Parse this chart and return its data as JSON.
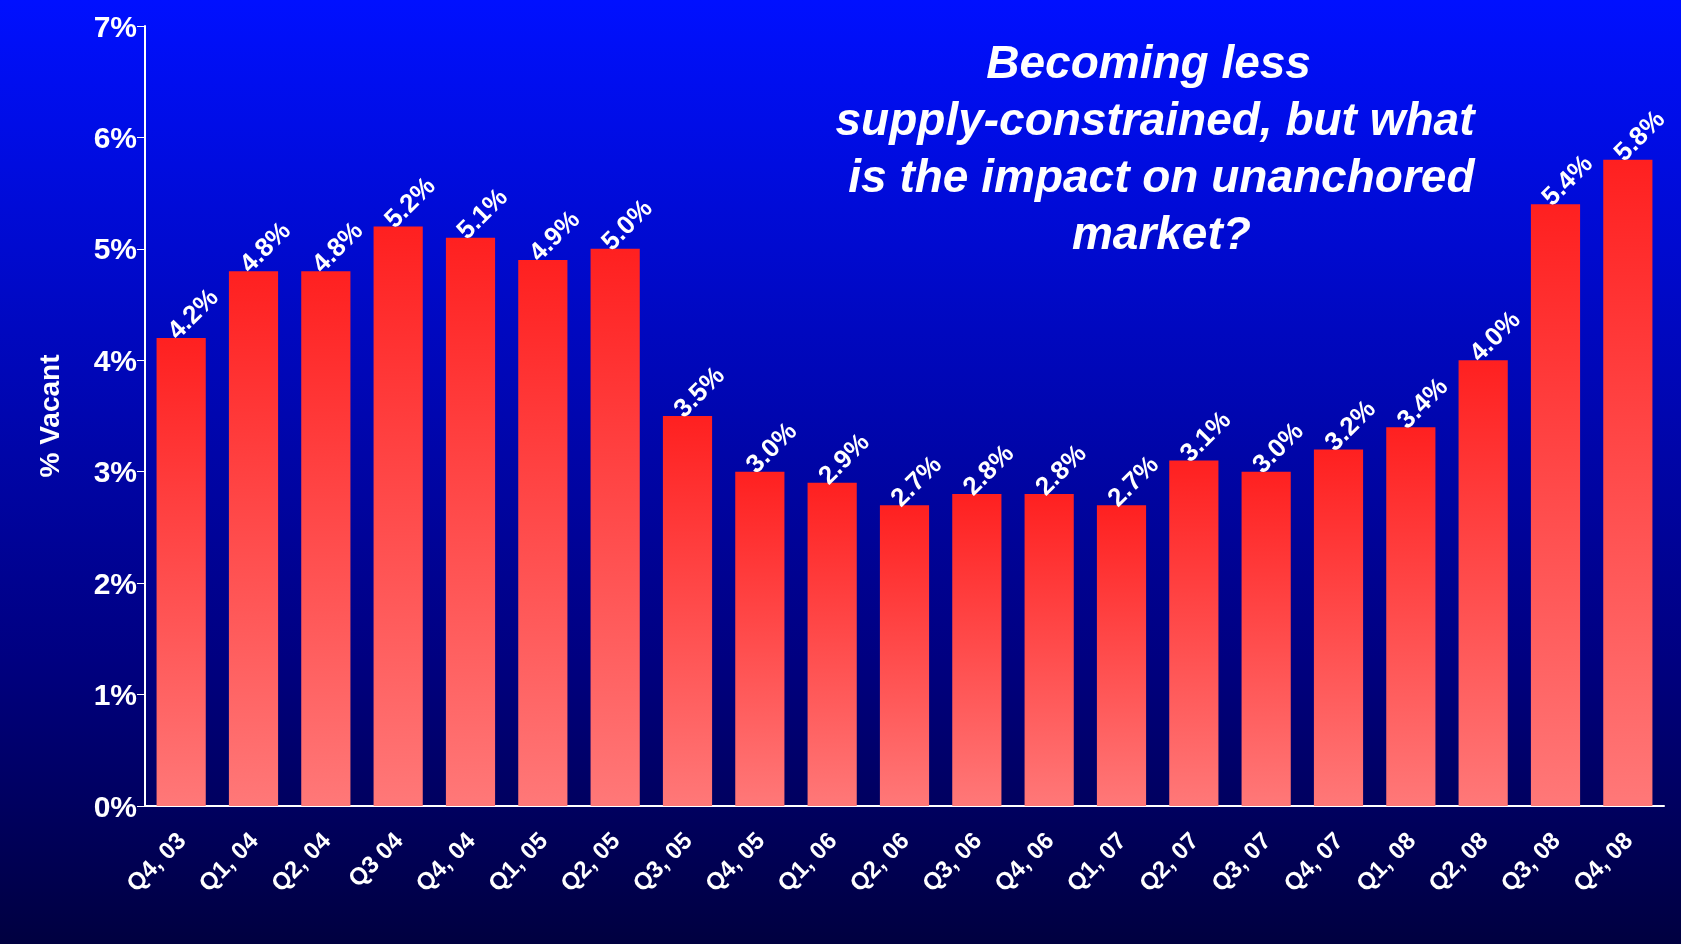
{
  "chart_data": {
    "type": "bar",
    "title": "Becoming less supply-constrained, but what is the impact on unanchored market?",
    "ylabel": "% Vacant",
    "categories": [
      "Q4, 03",
      "Q1, 04",
      "Q2, 04",
      "Q3 04",
      "Q4, 04",
      "Q1, 05",
      "Q2, 05",
      "Q3, 05",
      "Q4, 05",
      "Q1, 06",
      "Q2, 06",
      "Q3, 06",
      "Q4, 06",
      "Q1, 07",
      "Q2, 07",
      "Q3, 07",
      "Q4, 07",
      "Q1, 08",
      "Q2, 08",
      "Q3, 08",
      "Q4, 08"
    ],
    "values": [
      4.2,
      4.8,
      4.8,
      5.2,
      5.1,
      4.9,
      5.0,
      3.5,
      3.0,
      2.9,
      2.7,
      2.8,
      2.8,
      2.7,
      3.1,
      3.0,
      3.2,
      3.4,
      4.0,
      5.4,
      5.8
    ],
    "value_labels": [
      "4.2%",
      "4.8%",
      "4.8%",
      "5.2%",
      "5.1%",
      "4.9%",
      "5.0%",
      "3.5%",
      "3.0%",
      "2.9%",
      "2.7%",
      "2.8%",
      "2.8%",
      "2.7%",
      "3.1%",
      "3.0%",
      "3.2%",
      "3.4%",
      "4.0%",
      "5.4%",
      "5.8%"
    ],
    "color": "#ff2020",
    "ylim": [
      0,
      7
    ],
    "yticks": [
      {
        "value": 0,
        "label": "0%"
      },
      {
        "value": 1,
        "label": "1%"
      },
      {
        "value": 2,
        "label": "2%"
      },
      {
        "value": 3,
        "label": "3%"
      },
      {
        "value": 4,
        "label": "4%"
      },
      {
        "value": 5,
        "label": "5%"
      },
      {
        "value": 6,
        "label": "6%"
      },
      {
        "value": 7,
        "label": "7%"
      }
    ],
    "grid": false
  }
}
